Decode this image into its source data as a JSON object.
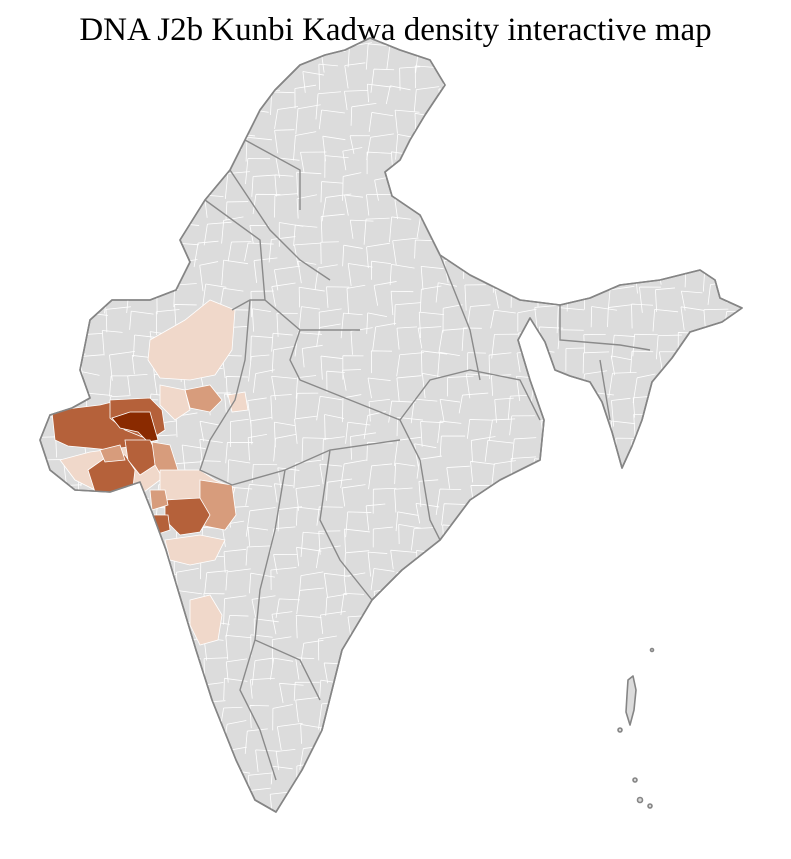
{
  "title": "DNA J2b Kunbi Kadwa density interactive map",
  "colors": {
    "base": "#dcdcdc",
    "border": "#858585",
    "district_border": "#ffffff",
    "density_low": "#f0d8ca",
    "density_mid": "#d79c7c",
    "density_high": "#b5613a",
    "density_max": "#8a2a00"
  }
}
